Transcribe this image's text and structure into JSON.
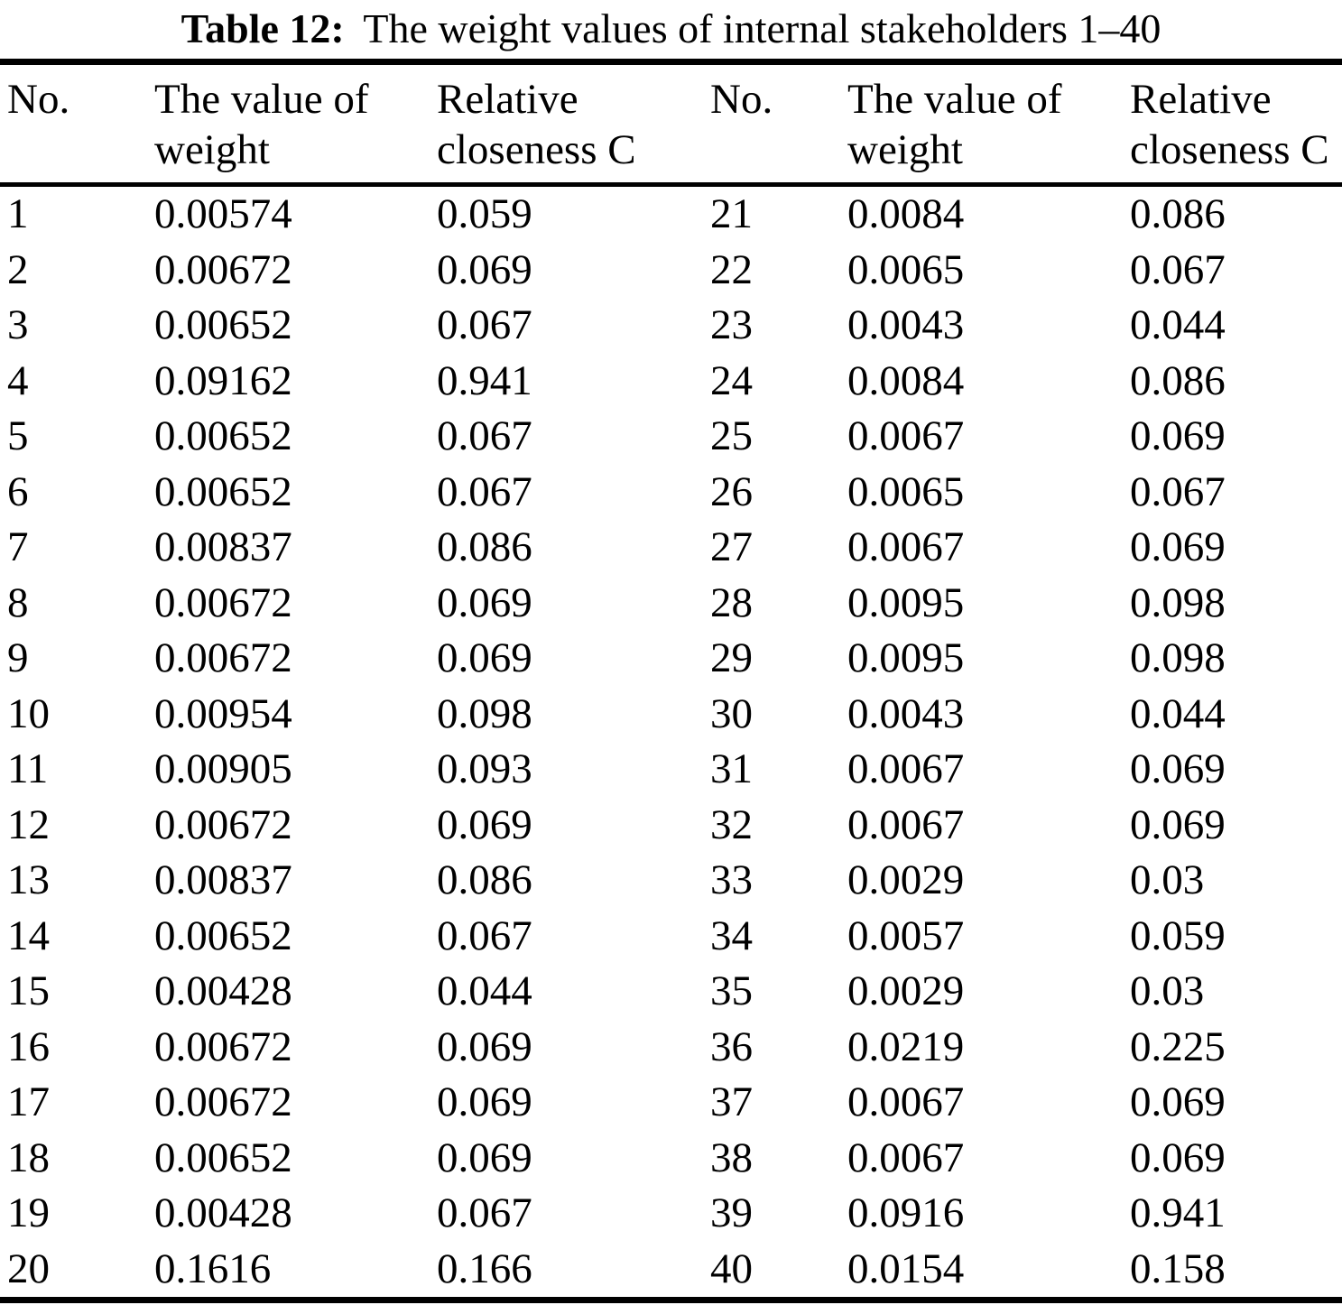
{
  "title": {
    "prefix": "Table 12:",
    "text": "The weight values of internal stakeholders 1–40"
  },
  "table": {
    "headers": [
      {
        "line1": "No.",
        "line2": ""
      },
      {
        "line1": "The value of",
        "line2": "weight"
      },
      {
        "line1": "Relative",
        "line2": "closeness C"
      },
      {
        "line1": "No.",
        "line2": ""
      },
      {
        "line1": "The value of",
        "line2": "weight"
      },
      {
        "line1": "Relative",
        "line2": "closeness C"
      }
    ],
    "column_semantics": [
      "stakeholder-number",
      "weight-value",
      "relative-closeness",
      "stakeholder-number",
      "weight-value",
      "relative-closeness"
    ],
    "rows": [
      [
        "1",
        "0.00574",
        "0.059",
        "21",
        "0.0084",
        "0.086"
      ],
      [
        "2",
        "0.00672",
        "0.069",
        "22",
        "0.0065",
        "0.067"
      ],
      [
        "3",
        "0.00652",
        "0.067",
        "23",
        "0.0043",
        "0.044"
      ],
      [
        "4",
        "0.09162",
        "0.941",
        "24",
        "0.0084",
        "0.086"
      ],
      [
        "5",
        "0.00652",
        "0.067",
        "25",
        "0.0067",
        "0.069"
      ],
      [
        "6",
        "0.00652",
        "0.067",
        "26",
        "0.0065",
        "0.067"
      ],
      [
        "7",
        "0.00837",
        "0.086",
        "27",
        "0.0067",
        "0.069"
      ],
      [
        "8",
        "0.00672",
        "0.069",
        "28",
        "0.0095",
        "0.098"
      ],
      [
        "9",
        "0.00672",
        "0.069",
        "29",
        "0.0095",
        "0.098"
      ],
      [
        "10",
        "0.00954",
        "0.098",
        "30",
        "0.0043",
        "0.044"
      ],
      [
        "11",
        "0.00905",
        "0.093",
        "31",
        "0.0067",
        "0.069"
      ],
      [
        "12",
        "0.00672",
        "0.069",
        "32",
        "0.0067",
        "0.069"
      ],
      [
        "13",
        "0.00837",
        "0.086",
        "33",
        "0.0029",
        "0.03"
      ],
      [
        "14",
        "0.00652",
        "0.067",
        "34",
        "0.0057",
        "0.059"
      ],
      [
        "15",
        "0.00428",
        "0.044",
        "35",
        "0.0029",
        "0.03"
      ],
      [
        "16",
        "0.00672",
        "0.069",
        "36",
        "0.0219",
        "0.225"
      ],
      [
        "17",
        "0.00672",
        "0.069",
        "37",
        "0.0067",
        "0.069"
      ],
      [
        "18",
        "0.00652",
        "0.069",
        "38",
        "0.0067",
        "0.069"
      ],
      [
        "19",
        "0.00428",
        "0.067",
        "39",
        "0.0916",
        "0.941"
      ],
      [
        "20",
        "0.1616",
        "0.166",
        "40",
        "0.0154",
        "0.158"
      ]
    ]
  }
}
